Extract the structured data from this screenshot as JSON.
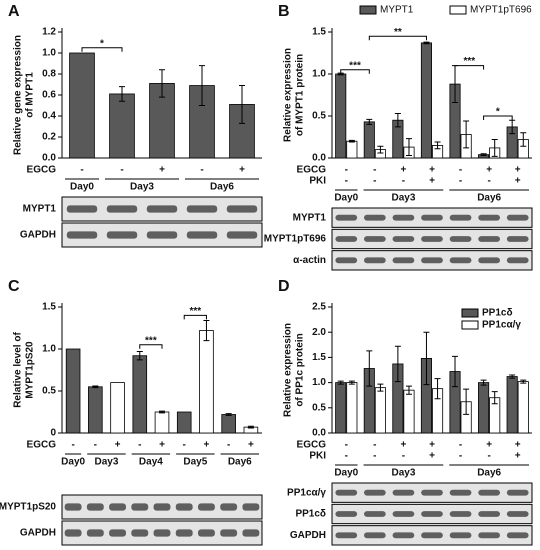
{
  "chart_data": [
    {
      "panel": "A",
      "type": "bar",
      "ylabel": [
        "Relative gene expression",
        "of MYPT1"
      ],
      "ylim": [
        0,
        1.2
      ],
      "yticks": [
        {
          "value": 0,
          "label": "0.0"
        },
        0.2,
        0.4,
        0.6,
        0.8,
        {
          "value": 1,
          "label": "1.0"
        },
        1.2
      ],
      "series": [
        {
          "color": "#595959",
          "values": [
            1.0,
            0.61,
            0.71,
            0.69,
            0.51
          ],
          "errors": [
            0,
            0.07,
            0.13,
            0.19,
            0.18
          ]
        }
      ],
      "rows": [
        {
          "label": "EGCG",
          "values": [
            "-",
            "-",
            "+",
            "-",
            "+"
          ]
        }
      ],
      "groups": [
        {
          "label": "Day0",
          "size": 1
        },
        {
          "label": "Day3",
          "size": 2
        },
        {
          "label": "Day6",
          "size": 2
        }
      ],
      "significance": [
        {
          "label": "*",
          "from": 0,
          "to": 1,
          "level": 1.05
        }
      ],
      "blots": [
        "MYPT1",
        "GAPDH"
      ]
    },
    {
      "panel": "B",
      "type": "bar",
      "ylabel": [
        "Relative expression",
        "of MYPT1 protein"
      ],
      "ylim": [
        0,
        1.5
      ],
      "yticks": [
        {
          "value": 0,
          "label": "0.0"
        },
        0.5,
        {
          "value": 1,
          "label": "1.0"
        },
        1.5
      ],
      "series": [
        {
          "name": "MYPT1",
          "color": "#595959",
          "values": [
            1.0,
            0.43,
            0.45,
            1.37,
            0.88,
            0.04,
            0.37
          ],
          "errors": [
            0.01,
            0.03,
            0.08,
            0.01,
            0.22,
            0.01,
            0.08
          ]
        },
        {
          "name": "MYPT1pT696",
          "color": "#ffffff",
          "values": [
            0.2,
            0.1,
            0.13,
            0.15,
            0.28,
            0.12,
            0.22
          ],
          "errors": [
            0.01,
            0.04,
            0.1,
            0.04,
            0.16,
            0.1,
            0.08
          ]
        }
      ],
      "rows": [
        {
          "label": "EGCG",
          "values": [
            "-",
            "-",
            "+",
            "+",
            "-",
            "+",
            "+"
          ]
        },
        {
          "label": "PKI",
          "values": [
            "-",
            "-",
            "-",
            "+",
            "-",
            "-",
            "+"
          ]
        }
      ],
      "groups": [
        {
          "label": "Day0",
          "size": 1
        },
        {
          "label": "Day3",
          "size": 3
        },
        {
          "label": "Day6",
          "size": 3
        }
      ],
      "significance": [
        {
          "label": "***",
          "from": 0,
          "to": 1,
          "level": 1.05
        },
        {
          "label": "**",
          "from": 1,
          "to": 3,
          "level": 1.45
        },
        {
          "label": "***",
          "from": 4,
          "to": 5,
          "level": 1.1
        },
        {
          "label": "*",
          "from": 5,
          "to": 6,
          "level": 0.5
        }
      ],
      "blots": [
        "MYPT1",
        "MYPT1pT696",
        "α-actin"
      ]
    },
    {
      "panel": "C",
      "type": "bar",
      "ylabel": [
        "Relative level of",
        "MYPT1pS20"
      ],
      "ylim": [
        0,
        1.5
      ],
      "yticks": [
        0,
        0.5,
        {
          "value": 1,
          "label": "1.0"
        },
        1.5
      ],
      "series": [
        {
          "colors": [
            "#595959",
            "#595959",
            "#ffffff",
            "#595959",
            "#ffffff",
            "#595959",
            "#ffffff",
            "#595959",
            "#ffffff"
          ],
          "values": [
            1.0,
            0.55,
            0.6,
            0.92,
            0.25,
            0.25,
            1.22,
            0.22,
            0.07
          ],
          "errors": [
            0,
            0.01,
            0,
            0.05,
            0.01,
            0,
            0.12,
            0.01,
            0.01
          ]
        }
      ],
      "rows": [
        {
          "label": "EGCG",
          "values": [
            "-",
            "-",
            "+",
            "-",
            "+",
            "-",
            "+",
            "-",
            "+"
          ]
        }
      ],
      "groups": [
        {
          "label": "Day0",
          "size": 1
        },
        {
          "label": "Day3",
          "size": 2
        },
        {
          "label": "Day4",
          "size": 2
        },
        {
          "label": "Day5",
          "size": 2
        },
        {
          "label": "Day6",
          "size": 2
        }
      ],
      "significance": [
        {
          "label": "***",
          "from": 3,
          "to": 4,
          "level": 1.05
        },
        {
          "label": "***",
          "from": 5,
          "to": 6,
          "level": 1.4
        }
      ],
      "blots": [
        "MYPT1pS20",
        "GAPDH"
      ]
    },
    {
      "panel": "D",
      "type": "bar",
      "ylabel": [
        "Relative expression",
        "of PP1c protein"
      ],
      "ylim": [
        0,
        2.5
      ],
      "yticks": [
        {
          "value": 0,
          "label": "0.0"
        },
        0.5,
        {
          "value": 1,
          "label": "1.0"
        },
        1.5,
        {
          "value": 2,
          "label": "2.0"
        },
        2.5
      ],
      "series": [
        {
          "name": "PP1cδ",
          "color": "#595959",
          "values": [
            1.0,
            1.28,
            1.37,
            1.48,
            1.22,
            1.0,
            1.12
          ],
          "errors": [
            0.03,
            0.35,
            0.35,
            0.52,
            0.3,
            0.05,
            0.03
          ]
        },
        {
          "name": "PP1cα/γ",
          "color": "#ffffff",
          "values": [
            1.0,
            0.9,
            0.85,
            0.88,
            0.62,
            0.7,
            1.02
          ],
          "errors": [
            0.03,
            0.07,
            0.08,
            0.2,
            0.25,
            0.12,
            0.03
          ]
        }
      ],
      "rows": [
        {
          "label": "EGCG",
          "values": [
            "-",
            "-",
            "+",
            "+",
            "-",
            "+",
            "+"
          ]
        },
        {
          "label": "PKI",
          "values": [
            "-",
            "-",
            "-",
            "+",
            "-",
            "-",
            "+"
          ]
        }
      ],
      "groups": [
        {
          "label": "Day0",
          "size": 1
        },
        {
          "label": "Day3",
          "size": 3
        },
        {
          "label": "Day6",
          "size": 3
        }
      ],
      "significance": [],
      "blots": [
        "PP1cα/γ",
        "PP1cδ",
        "GAPDH"
      ]
    }
  ]
}
